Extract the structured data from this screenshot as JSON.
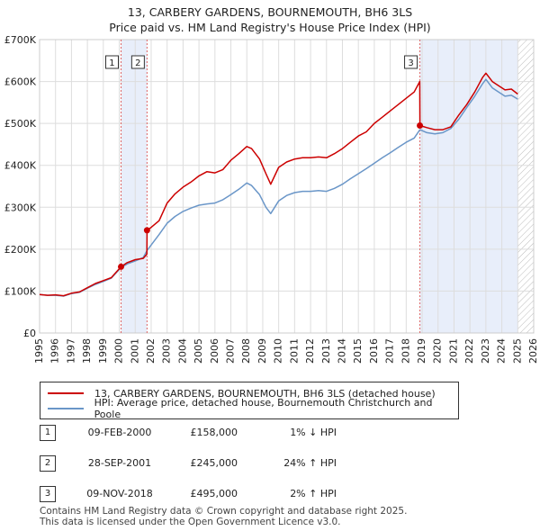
{
  "title_line1": "13, CARBERY GARDENS, BOURNEMOUTH, BH6 3LS",
  "title_line2": "Price paid vs. HM Land Registry's House Price Index (HPI)",
  "colors": {
    "price_line": "#cc0000",
    "hpi_line": "#6a96c8",
    "shade": "#e8eefa",
    "grid": "#dddddd",
    "vline": "#dd6666"
  },
  "chart_data": {
    "type": "line",
    "title": "Price paid vs. HM Land Registry's House Price Index (HPI)",
    "xlim": [
      1995,
      2026
    ],
    "ylim": [
      0,
      700000
    ],
    "yticks": [
      {
        "value": 0,
        "label": "£0"
      },
      {
        "value": 100000,
        "label": "£100K"
      },
      {
        "value": 200000,
        "label": "£200K"
      },
      {
        "value": 300000,
        "label": "£300K"
      },
      {
        "value": 400000,
        "label": "£400K"
      },
      {
        "value": 500000,
        "label": "£500K"
      },
      {
        "value": 600000,
        "label": "£600K"
      },
      {
        "value": 700000,
        "label": "£700K"
      }
    ],
    "xticks": [
      "1995",
      "1996",
      "1997",
      "1998",
      "1999",
      "2000",
      "2001",
      "2002",
      "2003",
      "2004",
      "2005",
      "2006",
      "2007",
      "2008",
      "2009",
      "2010",
      "2011",
      "2012",
      "2013",
      "2014",
      "2015",
      "2016",
      "2017",
      "2018",
      "2019",
      "2020",
      "2021",
      "2022",
      "2023",
      "2024",
      "2025",
      "2026"
    ],
    "shaded_ranges": [
      [
        2000.11,
        2001.74
      ],
      [
        2018.86,
        2025.0
      ]
    ],
    "hatched_from": 2025.0,
    "series": [
      {
        "name": "13, CARBERY GARDENS, BOURNEMOUTH, BH6 3LS (detached house)",
        "color": "#cc0000",
        "points": [
          [
            1995.0,
            92000
          ],
          [
            1995.5,
            90000
          ],
          [
            1996.0,
            91000
          ],
          [
            1996.5,
            89000
          ],
          [
            1997.0,
            95000
          ],
          [
            1997.5,
            98000
          ],
          [
            1998.0,
            108000
          ],
          [
            1998.5,
            118000
          ],
          [
            1999.0,
            125000
          ],
          [
            1999.5,
            132000
          ],
          [
            2000.11,
            158000
          ],
          [
            2000.5,
            168000
          ],
          [
            2001.0,
            175000
          ],
          [
            2001.5,
            178000
          ],
          [
            2001.73,
            188000
          ],
          [
            2001.74,
            245000
          ],
          [
            2002.0,
            252000
          ],
          [
            2002.5,
            268000
          ],
          [
            2003.0,
            310000
          ],
          [
            2003.5,
            332000
          ],
          [
            2004.0,
            348000
          ],
          [
            2004.5,
            360000
          ],
          [
            2005.0,
            375000
          ],
          [
            2005.5,
            385000
          ],
          [
            2006.0,
            382000
          ],
          [
            2006.5,
            390000
          ],
          [
            2007.0,
            412000
          ],
          [
            2007.5,
            428000
          ],
          [
            2008.0,
            445000
          ],
          [
            2008.3,
            440000
          ],
          [
            2008.8,
            415000
          ],
          [
            2009.2,
            380000
          ],
          [
            2009.5,
            355000
          ],
          [
            2010.0,
            395000
          ],
          [
            2010.5,
            408000
          ],
          [
            2011.0,
            415000
          ],
          [
            2011.5,
            418000
          ],
          [
            2012.0,
            418000
          ],
          [
            2012.5,
            420000
          ],
          [
            2013.0,
            418000
          ],
          [
            2013.5,
            428000
          ],
          [
            2014.0,
            440000
          ],
          [
            2014.5,
            455000
          ],
          [
            2015.0,
            470000
          ],
          [
            2015.5,
            480000
          ],
          [
            2016.0,
            500000
          ],
          [
            2016.5,
            515000
          ],
          [
            2017.0,
            530000
          ],
          [
            2017.5,
            545000
          ],
          [
            2018.0,
            560000
          ],
          [
            2018.5,
            575000
          ],
          [
            2018.85,
            600000
          ],
          [
            2018.86,
            495000
          ],
          [
            2019.3,
            490000
          ],
          [
            2019.8,
            485000
          ],
          [
            2020.3,
            485000
          ],
          [
            2020.8,
            492000
          ],
          [
            2021.3,
            520000
          ],
          [
            2021.8,
            545000
          ],
          [
            2022.3,
            575000
          ],
          [
            2022.8,
            610000
          ],
          [
            2023.0,
            620000
          ],
          [
            2023.4,
            600000
          ],
          [
            2023.8,
            590000
          ],
          [
            2024.2,
            580000
          ],
          [
            2024.6,
            582000
          ],
          [
            2025.0,
            570000
          ]
        ]
      },
      {
        "name": "HPI: Average price, detached house, Bournemouth Christchurch and Poole",
        "color": "#6a96c8",
        "points": [
          [
            1995.0,
            92000
          ],
          [
            1995.5,
            90000
          ],
          [
            1996.0,
            90000
          ],
          [
            1996.5,
            88000
          ],
          [
            1997.0,
            94000
          ],
          [
            1997.5,
            97000
          ],
          [
            1998.0,
            107000
          ],
          [
            1998.5,
            116000
          ],
          [
            1999.0,
            123000
          ],
          [
            1999.5,
            131000
          ],
          [
            2000.11,
            156000
          ],
          [
            2000.5,
            165000
          ],
          [
            2001.0,
            172000
          ],
          [
            2001.5,
            180000
          ],
          [
            2001.74,
            197000
          ],
          [
            2002.0,
            210000
          ],
          [
            2002.5,
            235000
          ],
          [
            2003.0,
            262000
          ],
          [
            2003.5,
            278000
          ],
          [
            2004.0,
            290000
          ],
          [
            2004.5,
            298000
          ],
          [
            2005.0,
            305000
          ],
          [
            2005.5,
            308000
          ],
          [
            2006.0,
            310000
          ],
          [
            2006.5,
            318000
          ],
          [
            2007.0,
            330000
          ],
          [
            2007.5,
            343000
          ],
          [
            2008.0,
            358000
          ],
          [
            2008.3,
            352000
          ],
          [
            2008.8,
            330000
          ],
          [
            2009.2,
            300000
          ],
          [
            2009.5,
            285000
          ],
          [
            2010.0,
            315000
          ],
          [
            2010.5,
            328000
          ],
          [
            2011.0,
            335000
          ],
          [
            2011.5,
            338000
          ],
          [
            2012.0,
            338000
          ],
          [
            2012.5,
            340000
          ],
          [
            2013.0,
            338000
          ],
          [
            2013.5,
            345000
          ],
          [
            2014.0,
            355000
          ],
          [
            2014.5,
            368000
          ],
          [
            2015.0,
            380000
          ],
          [
            2015.5,
            392000
          ],
          [
            2016.0,
            405000
          ],
          [
            2016.5,
            418000
          ],
          [
            2017.0,
            430000
          ],
          [
            2017.5,
            443000
          ],
          [
            2018.0,
            455000
          ],
          [
            2018.5,
            465000
          ],
          [
            2018.86,
            485000
          ],
          [
            2019.3,
            478000
          ],
          [
            2019.8,
            475000
          ],
          [
            2020.3,
            478000
          ],
          [
            2020.8,
            488000
          ],
          [
            2021.3,
            510000
          ],
          [
            2021.8,
            538000
          ],
          [
            2022.3,
            565000
          ],
          [
            2022.8,
            595000
          ],
          [
            2023.0,
            605000
          ],
          [
            2023.4,
            585000
          ],
          [
            2023.8,
            575000
          ],
          [
            2024.2,
            565000
          ],
          [
            2024.6,
            567000
          ],
          [
            2025.0,
            558000
          ]
        ]
      }
    ],
    "markers": [
      {
        "label": "1",
        "x": 2000.11,
        "y": 158000
      },
      {
        "label": "2",
        "x": 2001.74,
        "y": 245000
      },
      {
        "label": "3",
        "x": 2018.86,
        "y": 495000
      }
    ]
  },
  "legend": {
    "price_label": "13, CARBERY GARDENS, BOURNEMOUTH, BH6 3LS (detached house)",
    "hpi_label": "HPI: Average price, detached house, Bournemouth Christchurch and Poole"
  },
  "transactions": [
    {
      "num": "1",
      "date": "09-FEB-2000",
      "price": "£158,000",
      "hpi": "1% ↓ HPI"
    },
    {
      "num": "2",
      "date": "28-SEP-2001",
      "price": "£245,000",
      "hpi": "24% ↑ HPI"
    },
    {
      "num": "3",
      "date": "09-NOV-2018",
      "price": "£495,000",
      "hpi": "2% ↑ HPI"
    }
  ],
  "footer_line1": "Contains HM Land Registry data © Crown copyright and database right 2025.",
  "footer_line2": "This data is licensed under the Open Government Licence v3.0."
}
